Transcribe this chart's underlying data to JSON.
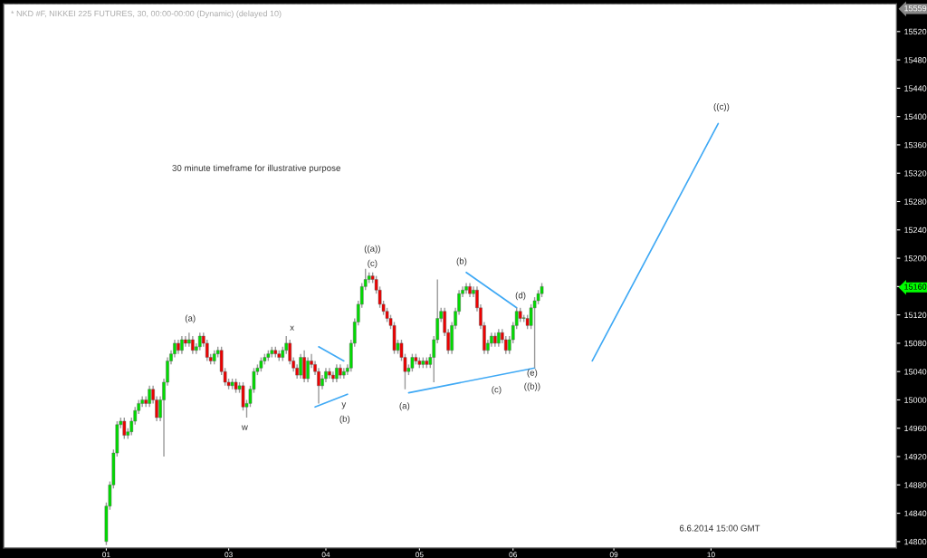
{
  "chart_data": {
    "type": "candlestick",
    "title": "* NKD #F, NIKKEI 225 FUTURES, 30, 00:00-00:00 (Dynamic) (delayed 10)",
    "categories": [
      null,
      null,
      null,
      null,
      null,
      null,
      null,
      null,
      null,
      null,
      null,
      null,
      null,
      null,
      null,
      null,
      null,
      null,
      null,
      null,
      null,
      null,
      null,
      null,
      null,
      null,
      null,
      null,
      "01",
      null,
      null,
      null,
      null,
      null,
      null,
      null,
      null,
      null,
      null,
      null,
      null,
      null,
      null,
      null,
      null,
      null,
      null,
      null,
      null,
      null,
      null,
      null,
      null,
      null,
      null,
      null,
      null,
      null,
      null,
      null,
      null,
      null,
      "03",
      null,
      null,
      null,
      null,
      null,
      null,
      null,
      null,
      null,
      null,
      null,
      null,
      null,
      null,
      null,
      null,
      null,
      null,
      null,
      null,
      null,
      null,
      null,
      null,
      null,
      null,
      "04",
      null,
      null,
      null,
      null,
      null,
      null,
      null,
      null,
      null,
      null,
      null,
      null,
      null,
      null,
      null,
      null,
      null,
      null,
      null,
      null,
      null,
      null,
      null,
      null,
      null,
      "05",
      null,
      null,
      null,
      null,
      null,
      null,
      null,
      null,
      null,
      null,
      null,
      null,
      null,
      null,
      null,
      null,
      null,
      null,
      null,
      null,
      null,
      null,
      null,
      null,
      null,
      "06",
      null,
      null,
      null,
      null,
      null,
      null,
      null,
      null,
      null,
      null,
      null,
      null,
      null,
      null,
      null,
      null,
      null,
      null,
      null,
      null,
      null,
      null,
      null,
      null,
      null,
      null,
      null,
      "09",
      null,
      null,
      null,
      null,
      null,
      null,
      null,
      null,
      null,
      null,
      null,
      null,
      null,
      null,
      null,
      null,
      null,
      null,
      null,
      null,
      null,
      null,
      null,
      null,
      null,
      null,
      "10",
      null,
      null,
      null,
      null,
      null,
      null,
      null,
      null,
      null,
      null,
      null,
      null,
      null,
      null,
      null,
      null,
      null,
      null,
      null,
      null,
      null,
      null,
      null,
      null,
      null,
      null,
      null,
      null,
      null,
      null,
      null,
      null,
      null,
      null,
      null,
      null,
      null,
      null,
      null,
      null,
      null,
      null,
      null,
      null,
      null,
      null,
      null,
      null,
      null,
      null,
      null
    ],
    "ohlc": [
      null,
      null,
      null,
      null,
      null,
      null,
      null,
      null,
      null,
      null,
      null,
      null,
      null,
      null,
      null,
      null,
      null,
      null,
      null,
      null,
      null,
      null,
      null,
      null,
      null,
      null,
      null,
      null,
      [
        14800,
        14855,
        14795,
        14850
      ],
      [
        14850,
        14885,
        14845,
        14880
      ],
      [
        14880,
        14930,
        14875,
        14925
      ],
      [
        14925,
        14970,
        14920,
        14965
      ],
      [
        14965,
        14975,
        14960,
        14970
      ],
      [
        14970,
        14975,
        14945,
        14950
      ],
      [
        14950,
        14960,
        14945,
        14955
      ],
      [
        14955,
        14975,
        14950,
        14970
      ],
      [
        14970,
        14990,
        14965,
        14985
      ],
      [
        14985,
        15000,
        14980,
        14995
      ],
      [
        14995,
        15005,
        14990,
        15000
      ],
      [
        15000,
        15005,
        14990,
        14995
      ],
      [
        14995,
        15020,
        14990,
        15015
      ],
      [
        15015,
        15020,
        14995,
        15000
      ],
      [
        15000,
        15005,
        14970,
        14975
      ],
      [
        14975,
        15005,
        14970,
        15000
      ],
      [
        15000,
        15030,
        14920,
        15025
      ],
      [
        15025,
        15060,
        15020,
        15055
      ],
      [
        15055,
        15070,
        15050,
        15065
      ],
      [
        15065,
        15085,
        15060,
        15080
      ],
      [
        15080,
        15085,
        15065,
        15070
      ],
      [
        15070,
        15090,
        15065,
        15085
      ],
      [
        15085,
        15090,
        15075,
        15080
      ],
      [
        15080,
        15095,
        15075,
        15085
      ],
      [
        15085,
        15090,
        15065,
        15070
      ],
      [
        15070,
        15080,
        15065,
        15075
      ],
      [
        15075,
        15095,
        15070,
        15090
      ],
      [
        15090,
        15095,
        15075,
        15080
      ],
      [
        15080,
        15085,
        15055,
        15060
      ],
      [
        15060,
        15065,
        15050,
        15055
      ],
      [
        15055,
        15070,
        15050,
        15065
      ],
      [
        15065,
        15075,
        15060,
        15070
      ],
      [
        15070,
        15075,
        15035,
        15040
      ],
      [
        15040,
        15045,
        15020,
        15025
      ],
      [
        15025,
        15030,
        15015,
        15020
      ],
      [
        15020,
        15030,
        15015,
        15025
      ],
      [
        15025,
        15030,
        15010,
        15015
      ],
      [
        15015,
        15025,
        15010,
        15020
      ],
      [
        15020,
        15025,
        14985,
        14990
      ],
      [
        14990,
        15000,
        14975,
        14995
      ],
      [
        14995,
        15020,
        14990,
        15015
      ],
      [
        15015,
        15045,
        15010,
        15040
      ],
      [
        15040,
        15050,
        15035,
        15045
      ],
      [
        15045,
        15060,
        15040,
        15055
      ],
      [
        15055,
        15065,
        15050,
        15060
      ],
      [
        15060,
        15070,
        15055,
        15065
      ],
      [
        15065,
        15075,
        15060,
        15070
      ],
      [
        15070,
        15075,
        15060,
        15065
      ],
      [
        15065,
        15070,
        15055,
        15060
      ],
      [
        15060,
        15075,
        15055,
        15070
      ],
      [
        15070,
        15090,
        15065,
        15080
      ],
      [
        15080,
        15085,
        15050,
        15055
      ],
      [
        15055,
        15060,
        15040,
        15045
      ],
      [
        15045,
        15050,
        15030,
        15035
      ],
      [
        15035,
        15065,
        15030,
        15060
      ],
      [
        15060,
        15070,
        15025,
        15030
      ],
      [
        15030,
        15060,
        15025,
        15055
      ],
      [
        15055,
        15065,
        15045,
        15050
      ],
      [
        15050,
        15055,
        15035,
        15040
      ],
      [
        15040,
        15045,
        14995,
        15020
      ],
      [
        15020,
        15035,
        15015,
        15030
      ],
      [
        15030,
        15045,
        15025,
        15040
      ],
      [
        15040,
        15045,
        15030,
        15035
      ],
      [
        15035,
        15040,
        15025,
        15030
      ],
      [
        15030,
        15050,
        15025,
        15045
      ],
      [
        15045,
        15050,
        15030,
        15035
      ],
      [
        15035,
        15045,
        15030,
        15040
      ],
      [
        15040,
        15050,
        15035,
        15045
      ],
      [
        15045,
        15085,
        15040,
        15080
      ],
      [
        15080,
        15115,
        15075,
        15110
      ],
      [
        15110,
        15140,
        15105,
        15135
      ],
      [
        15135,
        15165,
        15130,
        15160
      ],
      [
        15160,
        15185,
        15155,
        15170
      ],
      [
        15170,
        15180,
        15165,
        15175
      ],
      [
        15175,
        15180,
        15165,
        15170
      ],
      [
        15170,
        15175,
        15150,
        15155
      ],
      [
        15155,
        15160,
        15130,
        15135
      ],
      [
        15135,
        15140,
        15120,
        15125
      ],
      [
        15125,
        15130,
        15110,
        15115
      ],
      [
        15115,
        15120,
        15100,
        15105
      ],
      [
        15105,
        15110,
        15065,
        15070
      ],
      [
        15070,
        15085,
        15065,
        15080
      ],
      [
        15080,
        15085,
        15055,
        15060
      ],
      [
        15060,
        15065,
        15015,
        15040
      ],
      [
        15040,
        15050,
        15035,
        15045
      ],
      [
        15045,
        15065,
        15040,
        15060
      ],
      [
        15060,
        15065,
        15050,
        15055
      ],
      [
        15055,
        15060,
        15045,
        15050
      ],
      [
        15050,
        15060,
        15045,
        15055
      ],
      [
        15055,
        15060,
        15045,
        15050
      ],
      [
        15050,
        15065,
        15045,
        15060
      ],
      [
        15060,
        15090,
        15025,
        15085
      ],
      [
        15085,
        15170,
        15080,
        15115
      ],
      [
        15115,
        15130,
        15110,
        15125
      ],
      [
        15125,
        15130,
        15090,
        15095
      ],
      [
        15095,
        15100,
        15065,
        15070
      ],
      [
        15070,
        15110,
        15065,
        15105
      ],
      [
        15105,
        15130,
        15100,
        15125
      ],
      [
        15125,
        15155,
        15120,
        15150
      ],
      [
        15150,
        15160,
        15145,
        15155
      ],
      [
        15155,
        15165,
        15150,
        15160
      ],
      [
        15160,
        15165,
        15145,
        15150
      ],
      [
        15150,
        15160,
        15145,
        15155
      ],
      [
        15155,
        15160,
        15125,
        15130
      ],
      [
        15130,
        15135,
        15100,
        15105
      ],
      [
        15105,
        15110,
        15065,
        15070
      ],
      [
        15070,
        15085,
        15065,
        15080
      ],
      [
        15080,
        15095,
        15075,
        15090
      ],
      [
        15090,
        15095,
        15075,
        15080
      ],
      [
        15080,
        15100,
        15075,
        15095
      ],
      [
        15095,
        15100,
        15080,
        15085
      ],
      [
        15085,
        15090,
        15065,
        15070
      ],
      [
        15070,
        15090,
        15065,
        15085
      ],
      [
        15085,
        15110,
        15080,
        15105
      ],
      [
        15105,
        15130,
        15100,
        15125
      ],
      [
        15125,
        15130,
        15110,
        15115
      ],
      [
        15115,
        15120,
        15110,
        15115
      ],
      [
        15115,
        15120,
        15100,
        15105
      ],
      [
        15105,
        15135,
        15100,
        15130
      ],
      [
        15130,
        15145,
        15045,
        15140
      ],
      [
        15140,
        15155,
        15135,
        15150
      ],
      [
        15150,
        15165,
        15145,
        15160
      ],
      null,
      null,
      null,
      null,
      null,
      null,
      null,
      null,
      null,
      null,
      null,
      null,
      null,
      null,
      null,
      null,
      null,
      null,
      null,
      null,
      null,
      null,
      null,
      null,
      null,
      null,
      null,
      null,
      null,
      null,
      null,
      null,
      null,
      null,
      null,
      null,
      null,
      null,
      null,
      null,
      null,
      null,
      null,
      null,
      null,
      null,
      null,
      null,
      null,
      null,
      null,
      null,
      null,
      null,
      null,
      null,
      null,
      null,
      null,
      null,
      null,
      null,
      null,
      null,
      null,
      null,
      null,
      null,
      null,
      null,
      null,
      null,
      null,
      null,
      null,
      null,
      null,
      null,
      null,
      null,
      null,
      null,
      null,
      null,
      null,
      null,
      null,
      null,
      null,
      null,
      null,
      null,
      null,
      null,
      null,
      null,
      null,
      null
    ],
    "series": [
      {
        "type": "line",
        "color": "#3fa9f5",
        "values": [
          null,
          null,
          null,
          null,
          null,
          null,
          null,
          null,
          null,
          null,
          null,
          null,
          null,
          null,
          null,
          null,
          null,
          null,
          null,
          null,
          null,
          null,
          null,
          null,
          null,
          null,
          null,
          null,
          null,
          null,
          null,
          null,
          null,
          null,
          null,
          null,
          null,
          null,
          null,
          null,
          null,
          null,
          null,
          null,
          null,
          null,
          null,
          null,
          null,
          null,
          null,
          null,
          null,
          null,
          null,
          null,
          null,
          null,
          null,
          null,
          null,
          null,
          null,
          null,
          null,
          null,
          null,
          null,
          null,
          null,
          null,
          null,
          null,
          null,
          null,
          null,
          null,
          null,
          null,
          null,
          null,
          null,
          null,
          null,
          null,
          null,
          null,
          15075,
          null,
          null,
          null,
          null,
          null,
          null,
          15055,
          null,
          null,
          null,
          null,
          null,
          null,
          null,
          null,
          null,
          null,
          null,
          null,
          null,
          null,
          null,
          null,
          null,
          null,
          null,
          null,
          null,
          null,
          null,
          null,
          null,
          null,
          null,
          null,
          null,
          null,
          null,
          null,
          null,
          null,
          null,
          null,
          null,
          null,
          null,
          null,
          null,
          null,
          null,
          null,
          null,
          null,
          null,
          null,
          null,
          null,
          null,
          null,
          null,
          null,
          null,
          null,
          null,
          null,
          null,
          null,
          null,
          null,
          null,
          null,
          null,
          null,
          null,
          null,
          null,
          null,
          null,
          null,
          null,
          null,
          null,
          null,
          null,
          null,
          null,
          null,
          null,
          null,
          null,
          null,
          null,
          null,
          null,
          null,
          null,
          null,
          null,
          null,
          null,
          null,
          null,
          null,
          null,
          null,
          null,
          null,
          null,
          null,
          null,
          null,
          null,
          null,
          null,
          null,
          null,
          null,
          null,
          null,
          null,
          null,
          null,
          null,
          null,
          null,
          null,
          null,
          null,
          null,
          null,
          null,
          null,
          null,
          null,
          null,
          null,
          null,
          null,
          null,
          null,
          null,
          null,
          null,
          null,
          null,
          null,
          null,
          null,
          null,
          null,
          null,
          null,
          null,
          null,
          null,
          null,
          null,
          null,
          null,
          null
        ]
      },
      {
        "type": "line",
        "color": "#3fa9f5",
        "values": [
          null,
          null,
          null,
          null,
          null,
          null,
          null,
          null,
          null,
          null,
          null,
          null,
          null,
          null,
          null,
          null,
          null,
          null,
          null,
          null,
          null,
          null,
          null,
          null,
          null,
          null,
          null,
          null,
          null,
          null,
          null,
          null,
          null,
          null,
          null,
          null,
          null,
          null,
          null,
          null,
          null,
          null,
          null,
          null,
          null,
          null,
          null,
          null,
          null,
          null,
          null,
          null,
          null,
          null,
          null,
          null,
          null,
          null,
          null,
          null,
          null,
          null,
          null,
          null,
          null,
          null,
          null,
          null,
          null,
          null,
          null,
          null,
          null,
          null,
          null,
          null,
          null,
          null,
          null,
          null,
          null,
          null,
          null,
          null,
          null,
          null,
          14990,
          null,
          null,
          null,
          null,
          null,
          null,
          null,
          null,
          15008,
          null,
          null,
          null,
          null,
          null,
          null,
          null,
          null,
          null,
          null,
          null,
          null,
          null,
          null,
          null,
          null,
          null,
          null,
          null,
          null,
          null,
          null,
          null,
          null,
          null,
          null,
          null,
          null,
          null,
          null,
          null,
          null,
          null,
          null,
          null,
          null,
          null,
          null,
          null,
          null,
          null,
          null,
          null,
          null,
          null,
          null,
          null,
          null,
          null,
          null,
          null,
          null,
          null,
          null,
          null,
          null,
          null,
          null,
          null,
          null,
          null,
          null,
          null,
          null,
          null,
          null,
          null,
          null,
          null,
          null,
          null,
          null,
          null,
          null,
          null,
          null,
          null,
          null,
          null,
          null,
          null,
          null,
          null,
          null,
          null,
          null,
          null,
          null,
          null,
          null,
          null,
          null,
          null,
          null,
          null,
          null,
          null,
          null,
          null,
          null,
          null,
          null,
          null,
          null,
          null,
          null,
          null,
          null,
          null,
          null,
          null,
          null,
          null,
          null,
          null,
          null,
          null,
          null,
          null,
          null,
          null,
          null,
          null,
          null,
          null,
          null,
          null,
          null,
          null,
          null,
          null,
          null,
          null,
          null,
          null,
          null,
          null,
          null,
          null,
          null,
          null,
          null,
          null,
          null,
          null,
          null,
          null,
          null,
          null,
          null,
          null,
          null
        ]
      },
      {
        "type": "line",
        "color": "#3fa9f5",
        "values": [
          null,
          null,
          null,
          null,
          null,
          null,
          null,
          null,
          null,
          null,
          null,
          null,
          null,
          null,
          null,
          null,
          null,
          null,
          null,
          null,
          null,
          null,
          null,
          null,
          null,
          null,
          null,
          null,
          null,
          null,
          null,
          null,
          null,
          null,
          null,
          null,
          null,
          null,
          null,
          null,
          null,
          null,
          null,
          null,
          null,
          null,
          null,
          null,
          null,
          null,
          null,
          null,
          null,
          null,
          null,
          null,
          null,
          null,
          null,
          null,
          null,
          null,
          null,
          null,
          null,
          null,
          null,
          null,
          null,
          null,
          null,
          null,
          null,
          null,
          null,
          null,
          null,
          null,
          null,
          null,
          null,
          null,
          null,
          null,
          null,
          null,
          null,
          null,
          null,
          null,
          null,
          null,
          null,
          null,
          null,
          null,
          null,
          null,
          null,
          null,
          null,
          null,
          null,
          null,
          null,
          null,
          null,
          null,
          null,
          null,
          null,
          null,
          15010,
          null,
          null,
          null,
          null,
          null,
          null,
          null,
          null,
          null,
          null,
          null,
          null,
          null,
          null,
          null,
          null,
          null,
          null,
          null,
          null,
          null,
          null,
          null,
          null,
          null,
          null,
          null,
          null,
          null,
          null,
          null,
          null,
          null,
          null,
          15045,
          null,
          null,
          null,
          null,
          null,
          null,
          null,
          null,
          null,
          null,
          null,
          null,
          null,
          null,
          null,
          null,
          null,
          null,
          null,
          null,
          null,
          null,
          null,
          null,
          null,
          null,
          null,
          null,
          null,
          null,
          null,
          null,
          null,
          null,
          null,
          null,
          null,
          null,
          null,
          null,
          null,
          null,
          null,
          null,
          null,
          null,
          null,
          null,
          null,
          null,
          null,
          null,
          null,
          null,
          null,
          null,
          null,
          null,
          null,
          null,
          null,
          null,
          null,
          null,
          null,
          null,
          null,
          null,
          null,
          null,
          null,
          null,
          null,
          null,
          null,
          null,
          null,
          null,
          null,
          null,
          null,
          null,
          null,
          null,
          null,
          null,
          null,
          null,
          null,
          null,
          null,
          null,
          null,
          null,
          null,
          null,
          null,
          null,
          null,
          null
        ]
      },
      {
        "type": "line",
        "color": "#3fa9f5",
        "values": [
          null,
          null,
          null,
          null,
          null,
          null,
          null,
          null,
          null,
          null,
          null,
          null,
          null,
          null,
          null,
          null,
          null,
          null,
          null,
          null,
          null,
          null,
          null,
          null,
          null,
          null,
          null,
          null,
          null,
          null,
          null,
          null,
          null,
          null,
          null,
          null,
          null,
          null,
          null,
          null,
          null,
          null,
          null,
          null,
          null,
          null,
          null,
          null,
          null,
          null,
          null,
          null,
          null,
          null,
          null,
          null,
          null,
          null,
          null,
          null,
          null,
          null,
          null,
          null,
          null,
          null,
          null,
          null,
          null,
          null,
          null,
          null,
          null,
          null,
          null,
          null,
          null,
          null,
          null,
          null,
          null,
          null,
          null,
          null,
          null,
          null,
          null,
          null,
          null,
          null,
          null,
          null,
          null,
          null,
          null,
          null,
          null,
          null,
          null,
          null,
          null,
          null,
          null,
          null,
          null,
          null,
          null,
          null,
          null,
          null,
          null,
          null,
          null,
          null,
          null,
          null,
          null,
          null,
          null,
          null,
          null,
          null,
          null,
          null,
          null,
          null,
          null,
          null,
          15180,
          null,
          null,
          null,
          null,
          null,
          null,
          null,
          null,
          null,
          null,
          null,
          null,
          null,
          15130,
          null,
          null,
          null,
          null,
          null,
          null,
          null,
          null,
          null,
          null,
          null,
          null,
          null,
          null,
          null,
          null,
          null,
          null,
          null,
          null,
          null,
          null,
          null,
          null,
          null,
          null,
          null,
          null,
          null,
          null,
          null,
          null,
          null,
          null,
          null,
          null,
          null,
          null,
          null,
          null,
          null,
          null,
          null,
          null,
          null,
          null,
          null,
          null,
          null,
          null,
          null,
          null,
          null,
          null,
          null,
          null,
          null,
          null,
          null,
          null,
          null,
          null,
          null,
          null,
          null,
          null,
          null,
          null,
          null,
          null,
          null,
          null,
          null,
          null,
          null,
          null,
          null,
          null,
          null,
          null,
          null,
          null,
          null,
          null,
          null,
          null,
          null,
          null,
          null,
          null,
          null,
          null,
          null,
          null,
          null,
          null,
          null,
          null,
          null,
          null,
          null,
          null,
          null,
          null,
          null
        ]
      },
      {
        "type": "line",
        "color": "#3fa9f5",
        "values": [
          null,
          null,
          null,
          null,
          null,
          null,
          null,
          null,
          null,
          null,
          null,
          null,
          null,
          null,
          null,
          null,
          null,
          null,
          null,
          null,
          null,
          null,
          null,
          null,
          null,
          null,
          null,
          null,
          null,
          null,
          null,
          null,
          null,
          null,
          null,
          null,
          null,
          null,
          null,
          null,
          null,
          null,
          null,
          null,
          null,
          null,
          null,
          null,
          null,
          null,
          null,
          null,
          null,
          null,
          null,
          null,
          null,
          null,
          null,
          null,
          null,
          null,
          null,
          null,
          null,
          null,
          null,
          null,
          null,
          null,
          null,
          null,
          null,
          null,
          null,
          null,
          null,
          null,
          null,
          null,
          null,
          null,
          null,
          null,
          null,
          null,
          null,
          null,
          null,
          null,
          null,
          null,
          null,
          null,
          null,
          null,
          null,
          null,
          null,
          null,
          null,
          null,
          null,
          null,
          null,
          null,
          null,
          null,
          null,
          null,
          null,
          null,
          null,
          null,
          null,
          null,
          null,
          null,
          null,
          null,
          null,
          null,
          null,
          null,
          null,
          null,
          null,
          null,
          null,
          null,
          null,
          null,
          null,
          null,
          null,
          null,
          null,
          null,
          null,
          null,
          null,
          null,
          null,
          null,
          null,
          null,
          null,
          null,
          null,
          null,
          null,
          null,
          null,
          null,
          null,
          null,
          null,
          null,
          null,
          null,
          null,
          null,
          null,
          15055,
          null,
          null,
          null,
          null,
          null,
          null,
          null,
          null,
          null,
          null,
          null,
          null,
          null,
          null,
          null,
          null,
          null,
          null,
          null,
          null,
          null,
          null,
          null,
          null,
          null,
          null,
          null,
          null,
          null,
          null,
          null,
          null,
          null,
          null,
          15390,
          null,
          null,
          null,
          null,
          null,
          null,
          null,
          null,
          null,
          null,
          null,
          null,
          null,
          null,
          null,
          null,
          null,
          null,
          null,
          null,
          null,
          null,
          null,
          null,
          null,
          null,
          null,
          null,
          null,
          null,
          null,
          null,
          null,
          null,
          null,
          null,
          null,
          null,
          null,
          null,
          null,
          null,
          null,
          null,
          null,
          null,
          null,
          null,
          null
        ]
      }
    ],
    "ylim": [
      14791,
      15559
    ],
    "yticks": [
      14800,
      14840,
      14880,
      14920,
      14960,
      15000,
      15040,
      15080,
      15120,
      15160,
      15200,
      15240,
      15280,
      15320,
      15360,
      15400,
      15440,
      15480,
      15520
    ],
    "ref_lines": [
      {
        "axis": "y",
        "value": 15559,
        "label": "15559",
        "color": "#888888",
        "line_style": "dashed"
      }
    ],
    "annotations": [
      "(a)",
      "w",
      "x",
      "y",
      "(b)",
      "((a))",
      "(c)",
      "(a)",
      "(b)",
      "(d)",
      "(c)",
      "(e)",
      "((b))",
      "((c))",
      "30 minute timeframe for illustrative purpose",
      "6.6.2014 15:00 GMT"
    ],
    "grid": false
  }
}
